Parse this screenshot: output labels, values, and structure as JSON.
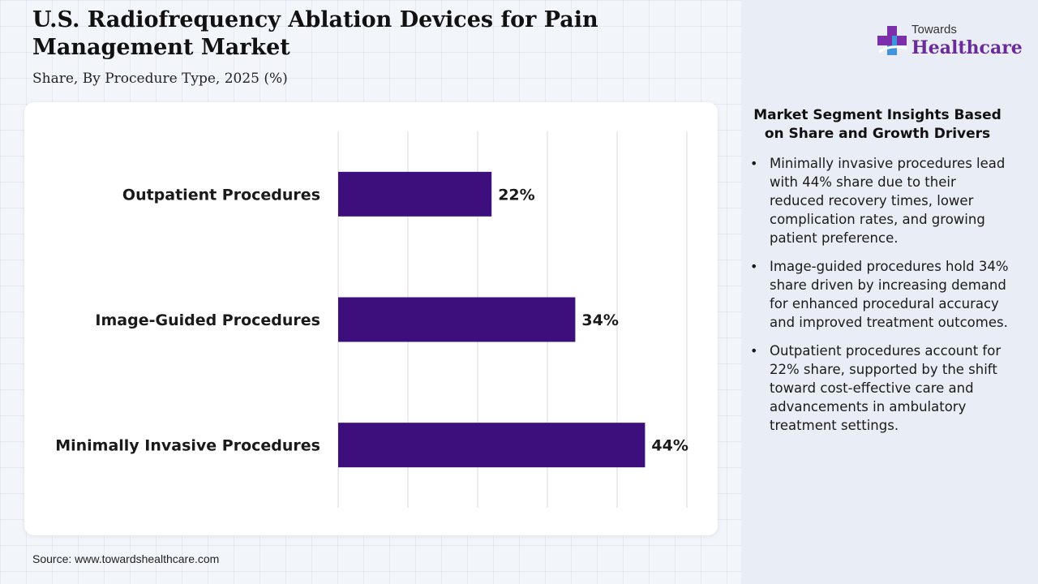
{
  "header": {
    "title": "U.S. Radiofrequency Ablation Devices for Pain Management Market",
    "subtitle": "Share, By Procedure Type, 2025 (%)"
  },
  "logo": {
    "top_text": "Towards",
    "main_text": "Healthcare",
    "icon": "medical-cross-icon",
    "colors": {
      "cross_purple": "#7b2fa8",
      "cross_blue": "#3aa0e0"
    }
  },
  "chart_data": {
    "type": "bar",
    "orientation": "horizontal",
    "categories": [
      "Outpatient Procedures",
      "Image-Guided Procedures",
      "Minimally Invasive Procedures"
    ],
    "values": [
      22,
      34,
      44
    ],
    "value_labels": [
      "22%",
      "34%",
      "44%"
    ],
    "xlim": [
      0,
      50
    ],
    "grid": "vertical",
    "bar_color": "#3c0f7d"
  },
  "insights": {
    "title": "Market Segment Insights Based on Share and Growth Drivers",
    "bullet_symbol": "•",
    "items": [
      "Minimally invasive procedures lead with 44% share due to their reduced recovery times, lower complication rates, and growing patient preference.",
      "Image-guided procedures hold 34% share driven by increasing demand for enhanced procedural accuracy and improved treatment outcomes.",
      "Outpatient procedures account for 22% share, supported by the shift toward cost-effective care and advancements in ambulatory treatment settings."
    ]
  },
  "footer": {
    "source": "Source: www.towardshealthcare.com"
  }
}
